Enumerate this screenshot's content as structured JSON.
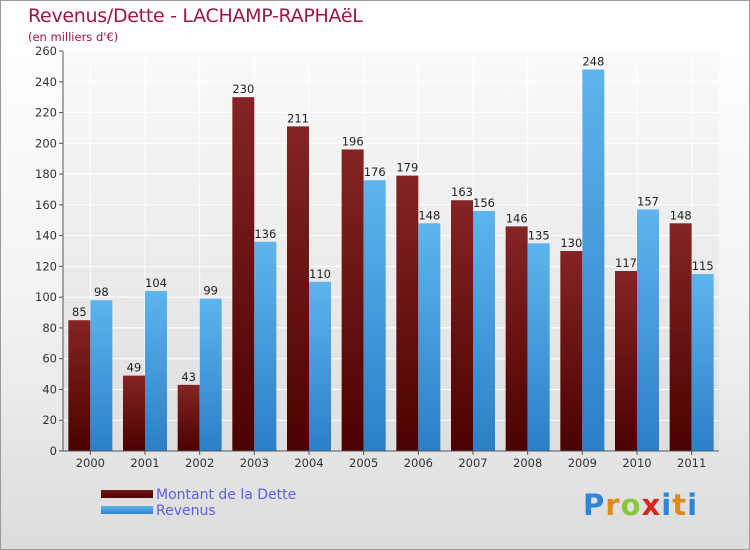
{
  "header": {
    "title": "Revenus/Dette - LACHAMP-RAPHAëL",
    "subtitle": "(en milliers d'€)"
  },
  "logo": {
    "text": "Proxiti"
  },
  "colors": {
    "dette": "#6b0f0f",
    "revenus": "#4aa3e6",
    "title": "#a01640",
    "legend_text": "#5a63d8"
  },
  "chart_data": {
    "type": "bar",
    "title": "Revenus/Dette - LACHAMP-RAPHAëL",
    "subtitle": "(en milliers d'€)",
    "xlabel": "",
    "ylabel": "",
    "categories": [
      "2000",
      "2001",
      "2002",
      "2003",
      "2004",
      "2005",
      "2006",
      "2007",
      "2008",
      "2009",
      "2010",
      "2011"
    ],
    "series": [
      {
        "name": "Montant de la Dette",
        "values": [
          85,
          49,
          43,
          230,
          211,
          196,
          179,
          163,
          146,
          130,
          117,
          148
        ]
      },
      {
        "name": "Revenus",
        "values": [
          98,
          104,
          99,
          136,
          110,
          176,
          148,
          156,
          135,
          248,
          157,
          115
        ]
      }
    ],
    "ylim": [
      0,
      260
    ],
    "yticks": [
      0,
      20,
      40,
      60,
      80,
      100,
      120,
      140,
      160,
      180,
      200,
      220,
      240,
      260
    ],
    "grid": true,
    "legend_position": "bottom-left",
    "data_labels": true
  }
}
